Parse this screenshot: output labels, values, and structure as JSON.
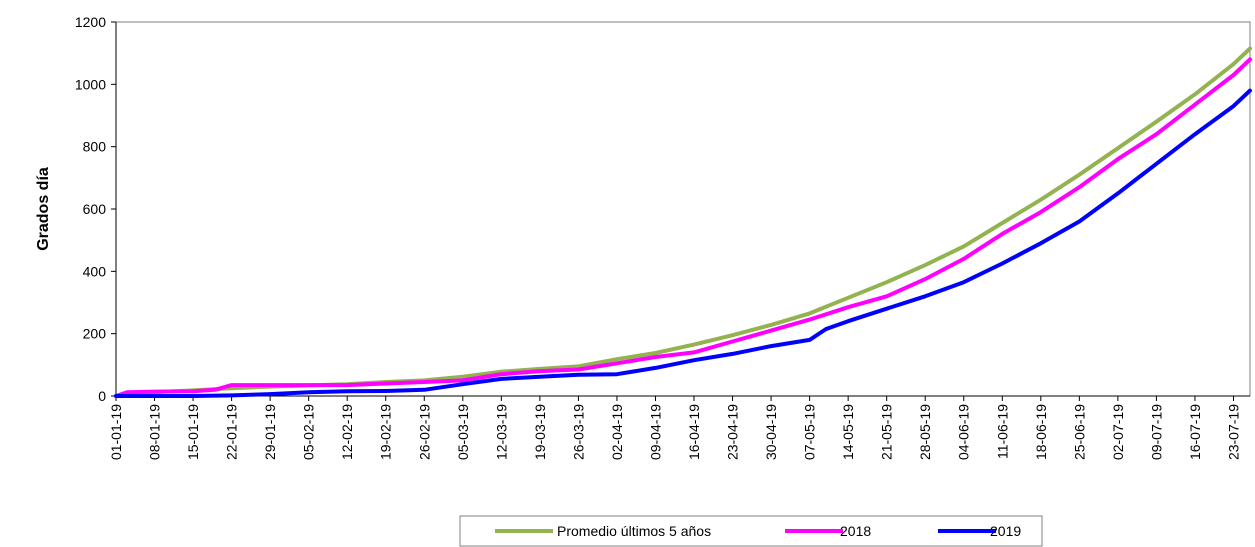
{
  "chart_data": {
    "type": "line",
    "title": "",
    "xlabel": "",
    "ylabel": "Grados día",
    "ylim": [
      0,
      1200
    ],
    "yticks": [
      0,
      200,
      400,
      600,
      800,
      1000,
      1200
    ],
    "x_start": "01-01-19",
    "x_end": "26-07-19",
    "x_tick_labels": [
      "01-01-19",
      "08-01-19",
      "15-01-19",
      "22-01-19",
      "29-01-19",
      "05-02-19",
      "12-02-19",
      "19-02-19",
      "26-02-19",
      "05-03-19",
      "12-03-19",
      "19-03-19",
      "26-03-19",
      "02-04-19",
      "09-04-19",
      "16-04-19",
      "23-04-19",
      "30-04-19",
      "07-05-19",
      "14-05-19",
      "21-05-19",
      "28-05-19",
      "04-06-19",
      "11-06-19",
      "18-06-19",
      "25-06-19",
      "02-07-19",
      "09-07-19",
      "16-07-19",
      "23-07-19"
    ],
    "grid": false,
    "legend_position": "bottom",
    "series": [
      {
        "name": "Promedio últimos 5 años",
        "color": "#92b34f",
        "x": [
          "01-01-19",
          "08-01-19",
          "15-01-19",
          "22-01-19",
          "29-01-19",
          "05-02-19",
          "12-02-19",
          "19-02-19",
          "26-02-19",
          "05-03-19",
          "12-03-19",
          "19-03-19",
          "26-03-19",
          "02-04-19",
          "09-04-19",
          "16-04-19",
          "23-04-19",
          "30-04-19",
          "07-05-19",
          "14-05-19",
          "21-05-19",
          "28-05-19",
          "04-06-19",
          "11-06-19",
          "18-06-19",
          "25-06-19",
          "02-07-19",
          "09-07-19",
          "16-07-19",
          "23-07-19",
          "26-07-19"
        ],
        "y": [
          0,
          12,
          18,
          25,
          30,
          34,
          38,
          45,
          50,
          62,
          78,
          87,
          95,
          118,
          138,
          165,
          195,
          228,
          265,
          315,
          365,
          420,
          480,
          555,
          630,
          710,
          795,
          880,
          968,
          1065,
          1115
        ]
      },
      {
        "name": "2018",
        "color": "#ff00ff",
        "x": [
          "01-01-19",
          "03-01-19",
          "08-01-19",
          "15-01-19",
          "19-01-19",
          "22-01-19",
          "29-01-19",
          "05-02-19",
          "12-02-19",
          "19-02-19",
          "26-02-19",
          "05-03-19",
          "12-03-19",
          "19-03-19",
          "26-03-19",
          "02-04-19",
          "09-04-19",
          "16-04-19",
          "23-04-19",
          "30-04-19",
          "07-05-19",
          "14-05-19",
          "21-05-19",
          "28-05-19",
          "04-06-19",
          "11-06-19",
          "18-06-19",
          "25-06-19",
          "02-07-19",
          "09-07-19",
          "16-07-19",
          "23-07-19",
          "26-07-19"
        ],
        "y": [
          0,
          12,
          14,
          15,
          20,
          35,
          35,
          35,
          35,
          40,
          45,
          50,
          70,
          80,
          85,
          105,
          125,
          140,
          175,
          210,
          245,
          285,
          320,
          375,
          440,
          520,
          590,
          670,
          760,
          840,
          935,
          1030,
          1080
        ]
      },
      {
        "name": "2019",
        "color": "#0000ff",
        "x": [
          "01-01-19",
          "08-01-19",
          "15-01-19",
          "22-01-19",
          "29-01-19",
          "05-02-19",
          "12-02-19",
          "19-02-19",
          "26-02-19",
          "05-03-19",
          "12-03-19",
          "19-03-19",
          "26-03-19",
          "02-04-19",
          "09-04-19",
          "16-04-19",
          "23-04-19",
          "30-04-19",
          "07-05-19",
          "10-05-19",
          "14-05-19",
          "21-05-19",
          "28-05-19",
          "04-06-19",
          "11-06-19",
          "18-06-19",
          "25-06-19",
          "02-07-19",
          "09-07-19",
          "16-07-19",
          "23-07-19",
          "26-07-19"
        ],
        "y": [
          0,
          0,
          0,
          2,
          6,
          12,
          15,
          16,
          20,
          38,
          55,
          62,
          68,
          70,
          90,
          115,
          135,
          160,
          180,
          215,
          240,
          280,
          320,
          365,
          425,
          490,
          560,
          650,
          745,
          840,
          930,
          980
        ]
      }
    ]
  }
}
